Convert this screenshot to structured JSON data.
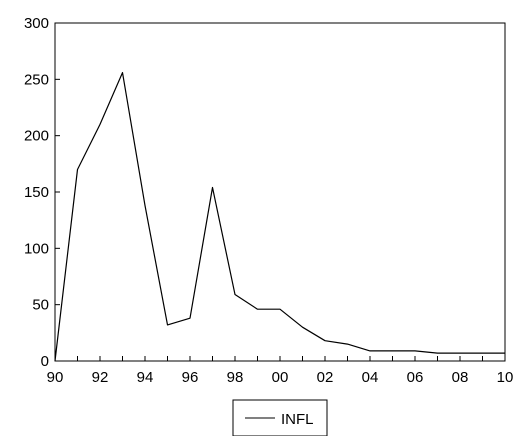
{
  "chart_data": {
    "type": "line",
    "title": "",
    "xlabel": "",
    "ylabel": "",
    "xlim": [
      1990,
      2010
    ],
    "ylim": [
      0,
      300
    ],
    "x_tick_labels": [
      "90",
      "92",
      "94",
      "96",
      "98",
      "00",
      "02",
      "04",
      "06",
      "08",
      "10"
    ],
    "y_tick_labels": [
      "0",
      "50",
      "100",
      "150",
      "200",
      "250",
      "300"
    ],
    "grid": false,
    "legend_position": "bottom-center",
    "series": [
      {
        "name": "INFL",
        "color": "#000000",
        "x": [
          1990,
          1991,
          1992,
          1993,
          1994,
          1995,
          1996,
          1997,
          1998,
          1999,
          2000,
          2001,
          2002,
          2003,
          2004,
          2005,
          2006,
          2007,
          2008,
          2009,
          2010
        ],
        "values": [
          0,
          170,
          210,
          256,
          138,
          32,
          38,
          154,
          59,
          46,
          46,
          30,
          18,
          15,
          9,
          9,
          9,
          7,
          7,
          7,
          7
        ]
      }
    ]
  }
}
